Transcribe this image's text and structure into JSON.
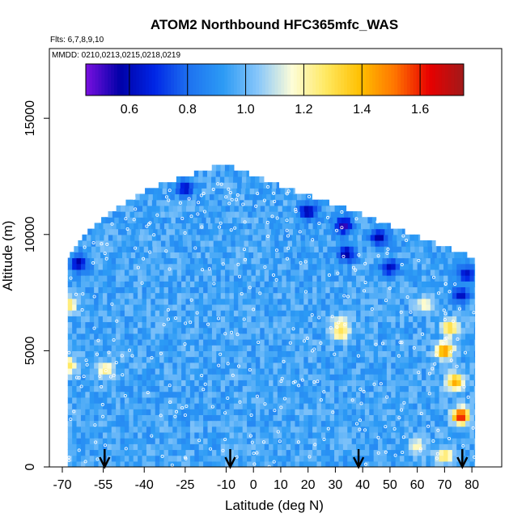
{
  "chart_data": {
    "type": "heatmap",
    "title": "ATOM2 Northbound HFC365mfc_WAS",
    "flights_label": "Flts: 6,7,8,9,10",
    "dates_label": "MMDD: 0210,0213,0215,0218,0219",
    "xlabel": "Latitude (deg N)",
    "ylabel": "Altitude (m)",
    "xlim": [
      -70,
      85
    ],
    "ylim": [
      0,
      18000
    ],
    "x_ticks": [
      -70,
      -55,
      -40,
      -25,
      -10,
      0,
      10,
      20,
      30,
      40,
      50,
      60,
      70,
      80
    ],
    "y_ticks": [
      0,
      5000,
      10000,
      15000
    ],
    "colorbar": {
      "range": [
        0.45,
        1.75
      ],
      "ticks": [
        0.6,
        0.8,
        1.0,
        1.2,
        1.4,
        1.6
      ],
      "colors": [
        "#7a10e0",
        "#0000a8",
        "#0026e6",
        "#1e72f0",
        "#2c9bf5",
        "#87c6fa",
        "#fdfdd8",
        "#ffe860",
        "#ffbf00",
        "#ff7400",
        "#e80000",
        "#a11a1a"
      ]
    },
    "profile_latitudes": [
      -54.5,
      -8.5,
      38.5,
      76.5
    ],
    "altitude_envelope": {
      "alt": [
        0,
        9000,
        10000,
        11000,
        12000,
        13000
      ],
      "lat_min": [
        -68,
        -68,
        -62,
        -52,
        -38,
        -12
      ],
      "lat_max": [
        81,
        81,
        58,
        37,
        12,
        -10
      ]
    },
    "typical_ratio": 0.95,
    "high_values": [
      {
        "lat": -68,
        "alt": 7000,
        "value": 1.3
      },
      {
        "lat": -68,
        "alt": 4400,
        "value": 1.3
      },
      {
        "lat": -54,
        "alt": 4200,
        "value": 1.25
      },
      {
        "lat": 32,
        "alt": 6200,
        "value": 1.2
      },
      {
        "lat": 32,
        "alt": 5800,
        "value": 1.3
      },
      {
        "lat": 63,
        "alt": 7000,
        "value": 1.2
      },
      {
        "lat": 72,
        "alt": 6000,
        "value": 1.35
      },
      {
        "lat": 70,
        "alt": 5000,
        "value": 1.5
      },
      {
        "lat": 74,
        "alt": 3700,
        "value": 1.45
      },
      {
        "lat": 76,
        "alt": 2200,
        "value": 1.65
      },
      {
        "lat": 70,
        "alt": 500,
        "value": 1.3
      },
      {
        "lat": 60,
        "alt": 900,
        "value": 1.2
      }
    ],
    "low_values": [
      {
        "lat": 20,
        "alt": 11000,
        "value": 0.55
      },
      {
        "lat": 33,
        "alt": 10400,
        "value": 0.5
      },
      {
        "lat": 46,
        "alt": 9900,
        "value": 0.55
      },
      {
        "lat": 34,
        "alt": 9200,
        "value": 0.55
      },
      {
        "lat": -64,
        "alt": 8800,
        "value": 0.55
      },
      {
        "lat": 78,
        "alt": 8300,
        "value": 0.6
      },
      {
        "lat": 76,
        "alt": 7400,
        "value": 0.6
      },
      {
        "lat": -25,
        "alt": 12000,
        "value": 0.6
      },
      {
        "lat": 50,
        "alt": 8600,
        "value": 0.6
      }
    ]
  }
}
